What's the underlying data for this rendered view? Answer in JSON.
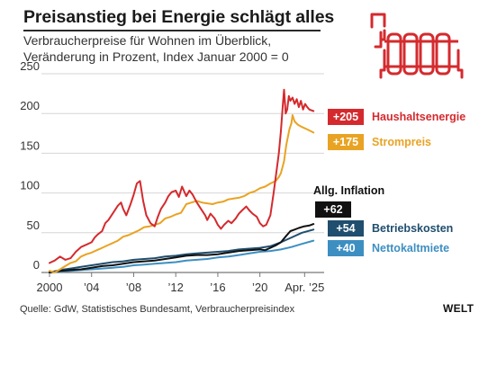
{
  "header": {
    "title": "Preisanstieg bei Energie schlägt alles",
    "subtitle_line1": "Verbraucherpreise für Wohnen im Überblick,",
    "subtitle_line2": "Veränderung in Prozent, Index Januar 2000 = 0"
  },
  "footer": {
    "source": "Quelle: GdW, Statistisches Bundesamt, Verbraucherpreisindex",
    "brand": "WELT"
  },
  "icon": {
    "name": "radiator-icon",
    "color": "#d42a2e"
  },
  "chart_data": {
    "type": "line",
    "ylim": [
      0,
      250
    ],
    "yticks": [
      0,
      50,
      100,
      150,
      200,
      250
    ],
    "xlim": [
      2000,
      2025.25
    ],
    "xticks": [
      {
        "x": 2000,
        "label": "2000"
      },
      {
        "x": 2004,
        "label": "’04"
      },
      {
        "x": 2008,
        "label": "’08"
      },
      {
        "x": 2012,
        "label": "’12"
      },
      {
        "x": 2016,
        "label": "’16"
      },
      {
        "x": 2020,
        "label": "’20"
      },
      {
        "x": 2024.25,
        "label": "Apr. ’25"
      }
    ],
    "grid": "horizontal",
    "series": [
      {
        "name": "Haushaltsenergie",
        "badge": "+205",
        "color": "#d42a2e",
        "points": [
          [
            2000,
            12
          ],
          [
            2000.5,
            15
          ],
          [
            2001,
            20
          ],
          [
            2001.5,
            16
          ],
          [
            2002,
            18
          ],
          [
            2002.5,
            26
          ],
          [
            2003,
            32
          ],
          [
            2003.5,
            35
          ],
          [
            2004,
            38
          ],
          [
            2004.3,
            44
          ],
          [
            2004.6,
            48
          ],
          [
            2005,
            52
          ],
          [
            2005.3,
            62
          ],
          [
            2005.6,
            66
          ],
          [
            2006,
            74
          ],
          [
            2006.5,
            84
          ],
          [
            2006.8,
            88
          ],
          [
            2007,
            80
          ],
          [
            2007.3,
            72
          ],
          [
            2007.7,
            86
          ],
          [
            2008,
            98
          ],
          [
            2008.3,
            112
          ],
          [
            2008.6,
            115
          ],
          [
            2008.9,
            90
          ],
          [
            2009.2,
            72
          ],
          [
            2009.6,
            62
          ],
          [
            2010,
            58
          ],
          [
            2010.3,
            70
          ],
          [
            2010.6,
            80
          ],
          [
            2011,
            88
          ],
          [
            2011.3,
            96
          ],
          [
            2011.6,
            101
          ],
          [
            2012,
            103
          ],
          [
            2012.3,
            95
          ],
          [
            2012.6,
            108
          ],
          [
            2013,
            96
          ],
          [
            2013.3,
            103
          ],
          [
            2013.6,
            98
          ],
          [
            2014,
            88
          ],
          [
            2014.4,
            80
          ],
          [
            2014.8,
            72
          ],
          [
            2015,
            66
          ],
          [
            2015.3,
            74
          ],
          [
            2015.7,
            68
          ],
          [
            2016,
            60
          ],
          [
            2016.3,
            55
          ],
          [
            2016.6,
            60
          ],
          [
            2017,
            65
          ],
          [
            2017.3,
            62
          ],
          [
            2017.7,
            68
          ],
          [
            2018,
            74
          ],
          [
            2018.3,
            78
          ],
          [
            2018.7,
            83
          ],
          [
            2019,
            78
          ],
          [
            2019.3,
            74
          ],
          [
            2019.7,
            70
          ],
          [
            2020,
            62
          ],
          [
            2020.3,
            58
          ],
          [
            2020.6,
            60
          ],
          [
            2021,
            72
          ],
          [
            2021.3,
            100
          ],
          [
            2021.6,
            130
          ],
          [
            2021.8,
            150
          ],
          [
            2022,
            178
          ],
          [
            2022.2,
            215
          ],
          [
            2022.3,
            230
          ],
          [
            2022.45,
            200
          ],
          [
            2022.6,
            205
          ],
          [
            2022.75,
            222
          ],
          [
            2022.9,
            216
          ],
          [
            2023.1,
            220
          ],
          [
            2023.3,
            212
          ],
          [
            2023.5,
            218
          ],
          [
            2023.7,
            208
          ],
          [
            2023.9,
            216
          ],
          [
            2024.1,
            205
          ],
          [
            2024.3,
            212
          ],
          [
            2024.5,
            208
          ],
          [
            2024.7,
            205
          ],
          [
            2025.1,
            203
          ]
        ]
      },
      {
        "name": "Strompreis",
        "badge": "+175",
        "color": "#e9a323",
        "points": [
          [
            2000,
            2
          ],
          [
            2000.5,
            0
          ],
          [
            2001,
            4
          ],
          [
            2001.5,
            8
          ],
          [
            2002,
            12
          ],
          [
            2002.5,
            14
          ],
          [
            2003,
            20
          ],
          [
            2003.5,
            23
          ],
          [
            2004,
            25
          ],
          [
            2004.5,
            28
          ],
          [
            2005,
            31
          ],
          [
            2005.5,
            34
          ],
          [
            2006,
            37
          ],
          [
            2006.5,
            40
          ],
          [
            2007,
            45
          ],
          [
            2007.5,
            47
          ],
          [
            2008,
            50
          ],
          [
            2008.5,
            53
          ],
          [
            2009,
            57
          ],
          [
            2009.5,
            58
          ],
          [
            2010,
            60
          ],
          [
            2010.5,
            62
          ],
          [
            2011,
            68
          ],
          [
            2011.5,
            70
          ],
          [
            2012,
            73
          ],
          [
            2012.5,
            75
          ],
          [
            2013,
            86
          ],
          [
            2013.5,
            88
          ],
          [
            2014,
            90
          ],
          [
            2014.5,
            88
          ],
          [
            2015,
            87
          ],
          [
            2015.5,
            86
          ],
          [
            2016,
            88
          ],
          [
            2016.5,
            89
          ],
          [
            2017,
            92
          ],
          [
            2017.5,
            93
          ],
          [
            2018,
            94
          ],
          [
            2018.5,
            96
          ],
          [
            2019,
            100
          ],
          [
            2019.5,
            102
          ],
          [
            2020,
            106
          ],
          [
            2020.5,
            108
          ],
          [
            2021,
            112
          ],
          [
            2021.5,
            115
          ],
          [
            2021.8,
            120
          ],
          [
            2022,
            125
          ],
          [
            2022.3,
            140
          ],
          [
            2022.5,
            160
          ],
          [
            2022.8,
            180
          ],
          [
            2023,
            188
          ],
          [
            2023.1,
            198
          ],
          [
            2023.3,
            190
          ],
          [
            2023.6,
            186
          ],
          [
            2024,
            183
          ],
          [
            2024.5,
            180
          ],
          [
            2025.1,
            176
          ]
        ]
      },
      {
        "name": "Allg. Inflation",
        "badge": "+62",
        "color": "#111111",
        "points": [
          [
            2000,
            0
          ],
          [
            2001,
            2
          ],
          [
            2002,
            3
          ],
          [
            2003,
            4
          ],
          [
            2004,
            6
          ],
          [
            2005,
            8
          ],
          [
            2006,
            9
          ],
          [
            2007,
            11
          ],
          [
            2008,
            13
          ],
          [
            2009,
            14
          ],
          [
            2010,
            15
          ],
          [
            2011,
            17
          ],
          [
            2012,
            19
          ],
          [
            2013,
            21
          ],
          [
            2014,
            22
          ],
          [
            2015,
            22
          ],
          [
            2016,
            23
          ],
          [
            2017,
            25
          ],
          [
            2018,
            27
          ],
          [
            2019,
            28
          ],
          [
            2020,
            29
          ],
          [
            2020.5,
            28
          ],
          [
            2021,
            31
          ],
          [
            2021.5,
            34
          ],
          [
            2022,
            38
          ],
          [
            2022.5,
            46
          ],
          [
            2022.9,
            52
          ],
          [
            2023.3,
            54
          ],
          [
            2023.7,
            56
          ],
          [
            2024.2,
            58
          ],
          [
            2024.7,
            59
          ],
          [
            2025.1,
            61
          ]
        ]
      },
      {
        "name": "Betriebskosten",
        "badge": "+54",
        "color": "#1f4e6e",
        "points": [
          [
            2000,
            0
          ],
          [
            2001,
            3
          ],
          [
            2002,
            5
          ],
          [
            2003,
            7
          ],
          [
            2004,
            9
          ],
          [
            2005,
            11
          ],
          [
            2006,
            13
          ],
          [
            2007,
            14
          ],
          [
            2008,
            16
          ],
          [
            2009,
            17
          ],
          [
            2010,
            18
          ],
          [
            2011,
            20
          ],
          [
            2012,
            21
          ],
          [
            2013,
            23
          ],
          [
            2014,
            24
          ],
          [
            2015,
            25
          ],
          [
            2016,
            26
          ],
          [
            2017,
            27
          ],
          [
            2018,
            29
          ],
          [
            2019,
            30
          ],
          [
            2020,
            31
          ],
          [
            2021,
            33
          ],
          [
            2022,
            38
          ],
          [
            2023,
            44
          ],
          [
            2024,
            50
          ],
          [
            2025.1,
            54
          ]
        ]
      },
      {
        "name": "Nettokaltmiete",
        "badge": "+40",
        "color": "#3d8fc2",
        "points": [
          [
            2000,
            0
          ],
          [
            2001,
            1
          ],
          [
            2002,
            2
          ],
          [
            2003,
            3
          ],
          [
            2004,
            4
          ],
          [
            2005,
            5
          ],
          [
            2006,
            6
          ],
          [
            2007,
            7
          ],
          [
            2008,
            9
          ],
          [
            2009,
            10
          ],
          [
            2010,
            11
          ],
          [
            2011,
            12
          ],
          [
            2012,
            13
          ],
          [
            2013,
            15
          ],
          [
            2014,
            16
          ],
          [
            2015,
            17
          ],
          [
            2016,
            19
          ],
          [
            2017,
            20
          ],
          [
            2018,
            22
          ],
          [
            2019,
            24
          ],
          [
            2020,
            26
          ],
          [
            2021,
            27
          ],
          [
            2022,
            29
          ],
          [
            2023,
            32
          ],
          [
            2024,
            36
          ],
          [
            2025.1,
            40
          ]
        ]
      }
    ]
  }
}
